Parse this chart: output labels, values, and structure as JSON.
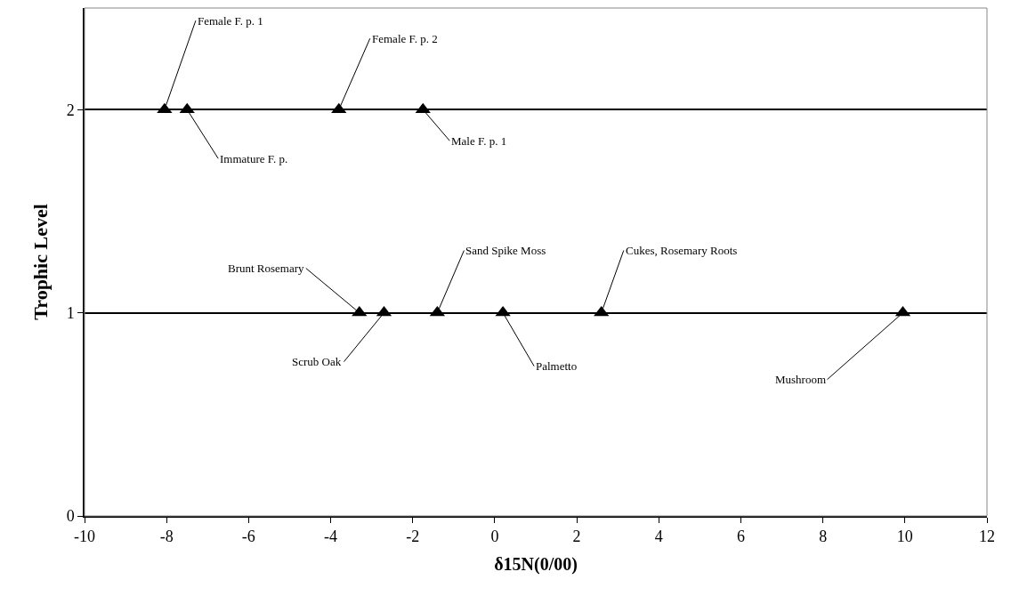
{
  "chart_data": {
    "type": "scatter",
    "xlabel": "δ15N(0/00)",
    "ylabel": "Trophic Level",
    "x": [
      -8.05,
      -7.5,
      -3.8,
      -1.75,
      -3.3,
      -2.7,
      -1.4,
      0.2,
      2.6,
      9.95
    ],
    "series": [
      {
        "color": "#000000",
        "values": [
          2,
          2,
          2,
          2,
          1,
          1,
          1,
          1,
          1,
          1
        ]
      }
    ],
    "xlim": [
      -10,
      12
    ],
    "xticks": [
      -10,
      -8,
      -6,
      -4,
      -2,
      0,
      2,
      4,
      6,
      8,
      10,
      12
    ],
    "ylim": [
      0,
      2.5
    ],
    "yticks": [
      0,
      1,
      2
    ],
    "grid": "y",
    "marker": "triangle",
    "annotations": [
      {
        "text": "Female F. p. 1",
        "x": -8.05,
        "y": 2
      },
      {
        "text": "Immature F. p.",
        "x": -7.5,
        "y": 2
      },
      {
        "text": "Female F. p. 2",
        "x": -3.8,
        "y": 2
      },
      {
        "text": "Male F. p. 1",
        "x": -1.75,
        "y": 2
      },
      {
        "text": "Brunt Rosemary",
        "x": -3.3,
        "y": 1
      },
      {
        "text": "Scrub Oak",
        "x": -2.7,
        "y": 1
      },
      {
        "text": "Sand Spike Moss",
        "x": -1.4,
        "y": 1
      },
      {
        "text": "Palmetto",
        "x": 0.2,
        "y": 1
      },
      {
        "text": "Cukes, Rosemary Roots",
        "x": 2.6,
        "y": 1
      },
      {
        "text": "Mushroom",
        "x": 9.95,
        "y": 1
      }
    ]
  }
}
